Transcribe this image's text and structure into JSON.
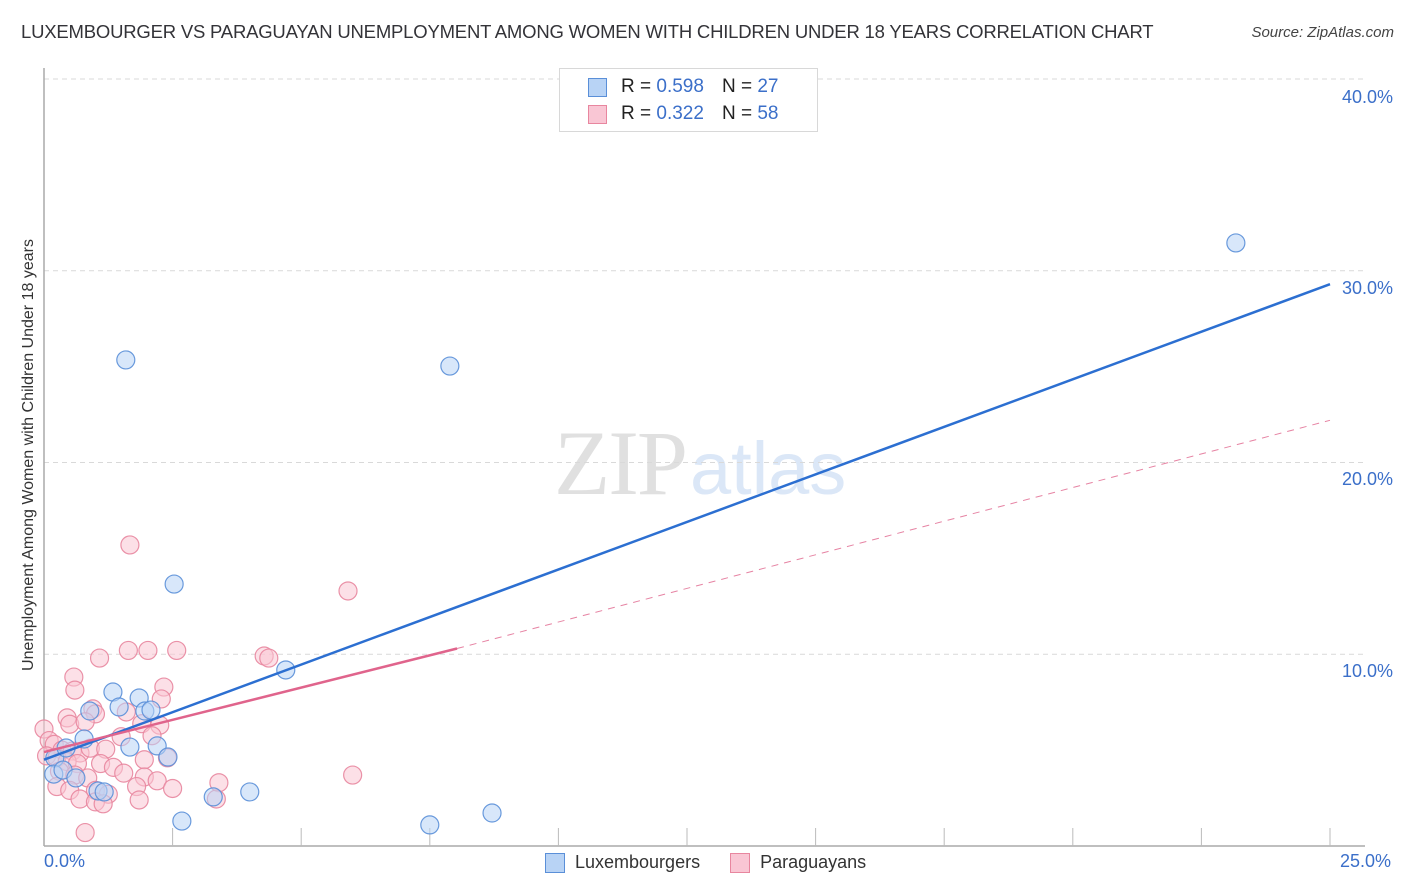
{
  "header": {
    "title": "LUXEMBOURGER VS PARAGUAYAN UNEMPLOYMENT AMONG WOMEN WITH CHILDREN UNDER 18 YEARS CORRELATION CHART",
    "source": "Source: ZipAtlas.com"
  },
  "watermark": {
    "zip": "ZIP",
    "atlas": "atlas"
  },
  "legend": {
    "rows": [
      {
        "r_label": "R =",
        "r_value": "0.598",
        "n_label": "N =",
        "n_value": "27",
        "series": "Luxembourgers"
      },
      {
        "r_label": "R =",
        "r_value": "0.322",
        "n_label": "N =",
        "n_value": "58",
        "series": "Paraguayans"
      }
    ],
    "bottom": [
      "Luxembourgers",
      "Paraguayans"
    ]
  },
  "colors": {
    "blue_fill": "#b8d3f5",
    "blue_stroke": "#5a8fd8",
    "blue_line": "#2c6fd1",
    "pink_fill": "#f9c6d4",
    "pink_stroke": "#e8869f",
    "pink_line": "#e0648c",
    "axis_text": "#3b6fc9",
    "grid": "#d9d9d9"
  },
  "axes": {
    "x_ticks": [
      "0.0%",
      "25.0%"
    ],
    "y_ticks": [
      "10.0%",
      "20.0%",
      "30.0%",
      "40.0%"
    ]
  },
  "chart_data": {
    "type": "scatter",
    "title": "LUXEMBOURGER VS PARAGUAYAN UNEMPLOYMENT AMONG WOMEN WITH CHILDREN UNDER 18 YEARS CORRELATION CHART",
    "xlabel": "",
    "ylabel": "Unemployment Among Women with Children Under 18 years",
    "xlim": [
      0,
      25
    ],
    "ylim": [
      0,
      42
    ],
    "x_tick_labels": [
      "0.0%",
      "25.0%"
    ],
    "y_tick_labels": [
      "10.0%",
      "20.0%",
      "30.0%",
      "40.0%"
    ],
    "y_gridlines": [
      10,
      20,
      30,
      40
    ],
    "grid": true,
    "legend_position": "top-center",
    "series": [
      {
        "name": "Luxembourgers",
        "R": 0.598,
        "N": 27,
        "color": "#5a8fd8",
        "trendline": {
          "x": [
            0,
            25
          ],
          "y": [
            4.5,
            29.3
          ],
          "style": "solid"
        },
        "points": [
          [
            1.59,
            25.35
          ],
          [
            7.89,
            25.03
          ],
          [
            23.17,
            31.45
          ],
          [
            2.53,
            13.66
          ],
          [
            4.7,
            9.18
          ],
          [
            1.34,
            8.03
          ],
          [
            1.85,
            7.72
          ],
          [
            0.89,
            7.04
          ],
          [
            1.46,
            7.25
          ],
          [
            1.96,
            7.04
          ],
          [
            2.08,
            7.09
          ],
          [
            0.78,
            5.58
          ],
          [
            0.21,
            4.59
          ],
          [
            1.67,
            5.16
          ],
          [
            2.2,
            5.22
          ],
          [
            2.41,
            4.64
          ],
          [
            0.43,
            5.11
          ],
          [
            0.19,
            3.75
          ],
          [
            0.37,
            3.96
          ],
          [
            0.62,
            3.55
          ],
          [
            1.05,
            2.87
          ],
          [
            1.17,
            2.82
          ],
          [
            3.29,
            2.56
          ],
          [
            4.0,
            2.82
          ],
          [
            2.68,
            1.3
          ],
          [
            7.5,
            1.1
          ],
          [
            8.71,
            1.72
          ]
        ]
      },
      {
        "name": "Paraguayans",
        "R": 0.322,
        "N": 58,
        "color": "#e8869f",
        "trendline": {
          "x": [
            0,
            8.03,
            25
          ],
          "y": [
            4.9,
            10.3,
            22.2
          ],
          "style": "solid-then-dashed",
          "solid_until_x": 8.03
        },
        "points": [
          [
            1.67,
            15.7
          ],
          [
            5.91,
            13.3
          ],
          [
            0.58,
            8.81
          ],
          [
            0.6,
            8.13
          ],
          [
            1.08,
            9.8
          ],
          [
            1.64,
            10.2
          ],
          [
            2.02,
            10.2
          ],
          [
            2.58,
            10.2
          ],
          [
            4.28,
            9.91
          ],
          [
            4.37,
            9.8
          ],
          [
            2.33,
            8.29
          ],
          [
            2.28,
            7.67
          ],
          [
            0.95,
            7.15
          ],
          [
            1.0,
            6.89
          ],
          [
            1.6,
            6.99
          ],
          [
            0.45,
            6.68
          ],
          [
            0.5,
            6.35
          ],
          [
            0.8,
            6.48
          ],
          [
            1.9,
            6.38
          ],
          [
            2.25,
            6.3
          ],
          [
            0.0,
            6.1
          ],
          [
            0.1,
            5.5
          ],
          [
            0.2,
            5.3
          ],
          [
            0.35,
            5.0
          ],
          [
            0.55,
            4.95
          ],
          [
            0.7,
            4.85
          ],
          [
            0.9,
            5.1
          ],
          [
            1.2,
            5.05
          ],
          [
            1.5,
            5.7
          ],
          [
            2.1,
            5.75
          ],
          [
            0.05,
            4.7
          ],
          [
            0.25,
            4.6
          ],
          [
            0.45,
            4.4
          ],
          [
            0.65,
            4.3
          ],
          [
            1.1,
            4.3
          ],
          [
            1.35,
            4.1
          ],
          [
            1.95,
            4.5
          ],
          [
            2.4,
            4.6
          ],
          [
            0.3,
            3.9
          ],
          [
            0.6,
            3.7
          ],
          [
            0.85,
            3.55
          ],
          [
            1.55,
            3.8
          ],
          [
            1.95,
            3.6
          ],
          [
            2.2,
            3.4
          ],
          [
            3.4,
            3.3
          ],
          [
            6.0,
            3.7
          ],
          [
            0.25,
            3.1
          ],
          [
            0.5,
            2.9
          ],
          [
            1.0,
            2.9
          ],
          [
            1.25,
            2.7
          ],
          [
            1.8,
            3.1
          ],
          [
            2.5,
            3.0
          ],
          [
            0.7,
            2.45
          ],
          [
            1.0,
            2.3
          ],
          [
            1.15,
            2.2
          ],
          [
            1.85,
            2.4
          ],
          [
            3.35,
            2.45
          ],
          [
            0.8,
            0.7
          ]
        ]
      }
    ]
  }
}
